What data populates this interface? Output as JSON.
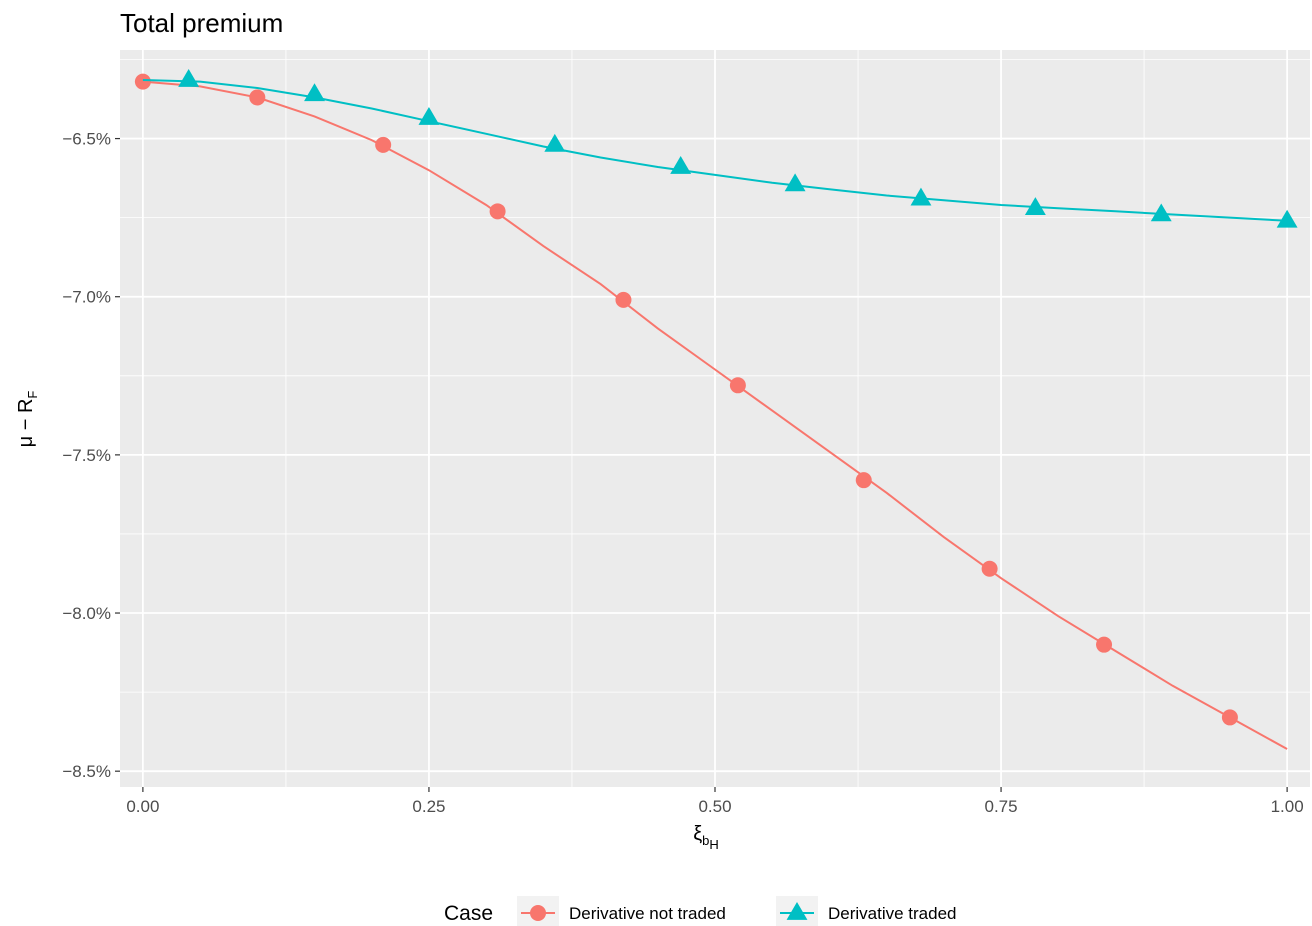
{
  "chart_data": {
    "type": "line",
    "title": "Total premium",
    "xlabel": {
      "main": "ξ",
      "sub": "b",
      "subsub": "H"
    },
    "ylabel": {
      "main": "μ − R",
      "sub": "F"
    },
    "xlim": [
      -0.02,
      1.02
    ],
    "ylim": [
      -8.55,
      -6.22
    ],
    "x_ticks": [
      0.0,
      0.25,
      0.5,
      0.75,
      1.0
    ],
    "x_tick_labels": [
      "0.00",
      "0.25",
      "0.50",
      "0.75",
      "1.00"
    ],
    "y_ticks": [
      -6.5,
      -7.0,
      -7.5,
      -8.0,
      -8.5
    ],
    "y_tick_labels": [
      "−6.5%",
      "−7.0%",
      "−7.5%",
      "−8.0%",
      "−8.5%"
    ],
    "grid": true,
    "legend": {
      "title": "Case",
      "position": "bottom"
    },
    "series": [
      {
        "name": "Derivative not traded",
        "color": "#F8766D",
        "marker": "circle",
        "curve": [
          [
            0.0,
            -6.32
          ],
          [
            0.05,
            -6.335
          ],
          [
            0.1,
            -6.37
          ],
          [
            0.15,
            -6.43
          ],
          [
            0.2,
            -6.505
          ],
          [
            0.25,
            -6.6
          ],
          [
            0.3,
            -6.71
          ],
          [
            0.35,
            -6.84
          ],
          [
            0.4,
            -6.96
          ],
          [
            0.45,
            -7.1
          ],
          [
            0.5,
            -7.23
          ],
          [
            0.55,
            -7.36
          ],
          [
            0.6,
            -7.49
          ],
          [
            0.65,
            -7.62
          ],
          [
            0.7,
            -7.76
          ],
          [
            0.75,
            -7.89
          ],
          [
            0.8,
            -8.01
          ],
          [
            0.85,
            -8.12
          ],
          [
            0.9,
            -8.23
          ],
          [
            0.95,
            -8.33
          ],
          [
            1.0,
            -8.43
          ]
        ],
        "points": [
          [
            0.0,
            -6.32
          ],
          [
            0.1,
            -6.37
          ],
          [
            0.21,
            -6.52
          ],
          [
            0.31,
            -6.73
          ],
          [
            0.42,
            -7.01
          ],
          [
            0.52,
            -7.28
          ],
          [
            0.63,
            -7.58
          ],
          [
            0.74,
            -7.86
          ],
          [
            0.84,
            -8.1
          ],
          [
            0.95,
            -8.33
          ]
        ]
      },
      {
        "name": "Derivative traded",
        "color": "#00BFC4",
        "marker": "triangle",
        "curve": [
          [
            0.0,
            -6.315
          ],
          [
            0.05,
            -6.32
          ],
          [
            0.1,
            -6.34
          ],
          [
            0.15,
            -6.37
          ],
          [
            0.2,
            -6.405
          ],
          [
            0.25,
            -6.445
          ],
          [
            0.3,
            -6.485
          ],
          [
            0.35,
            -6.525
          ],
          [
            0.4,
            -6.56
          ],
          [
            0.45,
            -6.59
          ],
          [
            0.5,
            -6.615
          ],
          [
            0.55,
            -6.64
          ],
          [
            0.6,
            -6.66
          ],
          [
            0.65,
            -6.68
          ],
          [
            0.7,
            -6.695
          ],
          [
            0.75,
            -6.71
          ],
          [
            0.8,
            -6.72
          ],
          [
            0.85,
            -6.73
          ],
          [
            0.9,
            -6.74
          ],
          [
            0.95,
            -6.75
          ],
          [
            1.0,
            -6.76
          ]
        ],
        "points": [
          [
            0.04,
            -6.315
          ],
          [
            0.15,
            -6.36
          ],
          [
            0.25,
            -6.435
          ],
          [
            0.36,
            -6.52
          ],
          [
            0.47,
            -6.59
          ],
          [
            0.57,
            -6.645
          ],
          [
            0.68,
            -6.69
          ],
          [
            0.78,
            -6.72
          ],
          [
            0.89,
            -6.74
          ],
          [
            1.0,
            -6.76
          ]
        ]
      }
    ]
  }
}
